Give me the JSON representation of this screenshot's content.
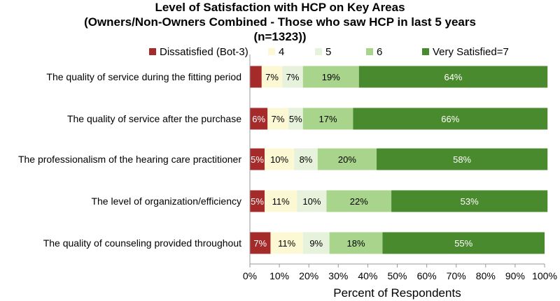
{
  "chart_data": {
    "type": "bar",
    "orientation": "horizontal",
    "stacked": true,
    "title_lines": [
      "Level of Satisfaction with HCP on Key Areas",
      "(Owners/Non-Owners Combined - Those who saw HCP in last 5 years",
      "(n=1323))"
    ],
    "xlabel": "Percent of Respondents",
    "ylabel": "",
    "xlim": [
      0,
      100
    ],
    "x_ticks": [
      "0%",
      "10%",
      "20%",
      "30%",
      "40%",
      "50%",
      "60%",
      "70%",
      "80%",
      "90%",
      "100%"
    ],
    "grid": false,
    "legend_position": "top",
    "categories": [
      "The quality of service during the fitting period",
      "The quality of service after the purchase",
      "The professionalism of the hearing care practitioner",
      "The level of organization/efficiency",
      "The quality of counseling provided throughout"
    ],
    "series": [
      {
        "name": "Dissatisfied (Bot-3)",
        "color": "#a52a2a",
        "label_color": "#ffffff",
        "values": [
          4,
          6,
          5,
          5,
          7
        ],
        "labels": [
          "",
          "6%",
          "5%",
          "5%",
          "7%"
        ]
      },
      {
        "name": "4",
        "color": "#fdf8d4",
        "label_color": "#000000",
        "values": [
          7,
          7,
          10,
          11,
          11
        ],
        "labels": [
          "7%",
          "7%",
          "10%",
          "11%",
          "11%"
        ]
      },
      {
        "name": "5",
        "color": "#e6f2dc",
        "label_color": "#000000",
        "values": [
          7,
          5,
          8,
          10,
          9
        ],
        "labels": [
          "7%",
          "5%",
          "8%",
          "10%",
          "9%"
        ]
      },
      {
        "name": "6",
        "color": "#a9d48b",
        "label_color": "#000000",
        "values": [
          19,
          17,
          20,
          22,
          18
        ],
        "labels": [
          "19%",
          "17%",
          "20%",
          "22%",
          "18%"
        ]
      },
      {
        "name": "Very Satisfied=7",
        "color": "#4a8a2e",
        "label_color": "#ffffff",
        "values": [
          64,
          66,
          58,
          53,
          55
        ],
        "labels": [
          "64%",
          "66%",
          "58%",
          "53%",
          "55%"
        ]
      }
    ]
  }
}
